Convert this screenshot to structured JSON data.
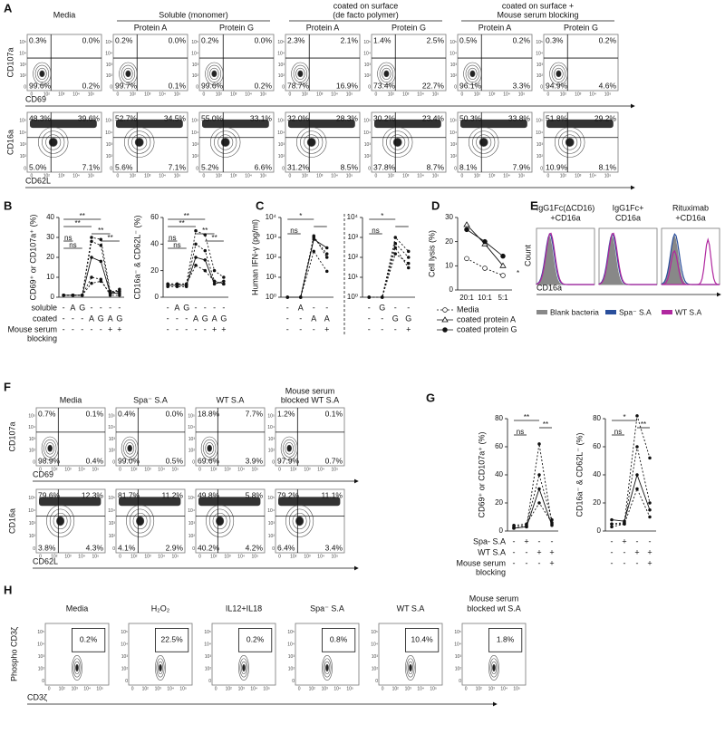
{
  "flow_ticks": [
    "0",
    "10²",
    "10³",
    "10⁴",
    "10⁵"
  ],
  "A": {
    "label": "A",
    "groups": [
      {
        "title": [
          "Media"
        ]
      },
      {
        "title": [
          "Soluble (monomer)"
        ],
        "subs": [
          "Protein A",
          "Protein G"
        ]
      },
      {
        "title": [
          "coated on surface",
          "(de facto polymer)"
        ],
        "subs": [
          "Protein A",
          "Protein G"
        ]
      },
      {
        "title": [
          "coated on surface +",
          "Mouse serum blocking"
        ],
        "subs": [
          "Protein A",
          "Protein G"
        ]
      }
    ],
    "rows": [
      {
        "ylabel": "CD107a",
        "xlabel": "CD69",
        "plots": [
          [
            "0.3%",
            "0.0%",
            "99.6%",
            "0.2%"
          ],
          [
            "0.2%",
            "0.0%",
            "99.7%",
            "0.1%"
          ],
          [
            "0.2%",
            "0.0%",
            "99.6%",
            "0.2%"
          ],
          [
            "2.3%",
            "2.1%",
            "78.7%",
            "16.9%"
          ],
          [
            "1.4%",
            "2.5%",
            "73.4%",
            "22.7%"
          ],
          [
            "0.5%",
            "0.2%",
            "96.1%",
            "3.3%"
          ],
          [
            "0.3%",
            "0.2%",
            "94.9%",
            "4.6%"
          ]
        ]
      },
      {
        "ylabel": "CD16a",
        "xlabel": "CD62L",
        "plots": [
          [
            "48.3%",
            "39.6%",
            "5.0%",
            "7.1%"
          ],
          [
            "52.7%",
            "34.5%",
            "5.6%",
            "7.1%"
          ],
          [
            "55.0%",
            "33.1%",
            "5.2%",
            "6.6%"
          ],
          [
            "32.0%",
            "28.3%",
            "31.2%",
            "8.5%"
          ],
          [
            "30.2%",
            "23.4%",
            "37.8%",
            "8.7%"
          ],
          [
            "50.3%",
            "33.8%",
            "8.1%",
            "7.9%"
          ],
          [
            "51.8%",
            "29.2%",
            "10.9%",
            "8.1%"
          ]
        ]
      }
    ]
  },
  "B": {
    "label": "B",
    "conditions": [
      [
        "soluble"
      ],
      [
        "coated"
      ],
      [
        "Mouse serum",
        "blocking"
      ]
    ],
    "charts": [
      {
        "ylabel": "CD69⁺ or CD107a⁺ (%)",
        "ylim": [
          0,
          40
        ],
        "yticks": [
          0,
          10,
          20,
          30,
          40
        ],
        "rows": [
          [
            "-",
            "A",
            "G",
            "-",
            "-",
            "-",
            "-"
          ],
          [
            "-",
            "-",
            "-",
            "A",
            "G",
            "A",
            "G"
          ],
          [
            "-",
            "-",
            "-",
            "-",
            "-",
            "+",
            "+"
          ]
        ],
        "series": [
          {
            "values": [
              1,
              1,
              1,
              30,
              29,
              3,
              3
            ],
            "dash": true
          },
          {
            "values": [
              1,
              1,
              1,
              28,
              26,
              2,
              4
            ],
            "dash": true
          },
          {
            "values": [
              1,
              1,
              1,
              20,
              18,
              2,
              2
            ],
            "dash": false
          },
          {
            "values": [
              1,
              1,
              1,
              10,
              9,
              1,
              1
            ],
            "dash": true
          },
          {
            "values": [
              1,
              1,
              1,
              7,
              8,
              2,
              3
            ],
            "dash": true
          }
        ],
        "stats": [
          "**",
          "**",
          "ns",
          "ns",
          "**",
          "**"
        ]
      },
      {
        "ylabel": "CD16a⁻ & CD62L⁻ (%)",
        "ylim": [
          0,
          60
        ],
        "yticks": [
          0,
          20,
          40,
          60
        ],
        "rows": [
          [
            "-",
            "A",
            "G",
            "-",
            "-",
            "-",
            "-"
          ],
          [
            "-",
            "-",
            "-",
            "A",
            "G",
            "A",
            "G"
          ],
          [
            "-",
            "-",
            "-",
            "-",
            "-",
            "+",
            "+"
          ]
        ],
        "series": [
          {
            "values": [
              10,
              10,
              10,
              50,
              47,
              20,
              15
            ],
            "dash": true
          },
          {
            "values": [
              8,
              8,
              8,
              40,
              35,
              12,
              10
            ],
            "dash": true
          },
          {
            "values": [
              9,
              9,
              9,
              30,
              28,
              10,
              12
            ],
            "dash": false
          },
          {
            "values": [
              10,
              10,
              10,
              24,
              20,
              12,
              10
            ],
            "dash": true
          }
        ],
        "stats": [
          "**",
          "**",
          "ns",
          "ns",
          "**",
          "**"
        ]
      }
    ]
  },
  "C": {
    "label": "C",
    "ylabel": "Human IFN-γ (pg/ml)",
    "charts": [
      {
        "log": true,
        "ylim": [
          1,
          10000
        ],
        "yticks": [
          {
            "value": 1,
            "label": "10⁰"
          },
          {
            "value": 10,
            "label": "10¹"
          },
          {
            "value": 100,
            "label": "10²"
          },
          {
            "value": 1000,
            "label": "10³"
          },
          {
            "value": 10000,
            "label": "10⁴"
          }
        ],
        "rows": [
          [
            "-",
            "A",
            "-",
            "-"
          ],
          [
            "-",
            "-",
            "A",
            "A"
          ],
          [
            "-",
            "-",
            "-",
            "+"
          ]
        ],
        "series": [
          {
            "values": [
              1,
              1,
              1000,
              150
            ],
            "dash": true
          },
          {
            "values": [
              1,
              1,
              800,
              300
            ],
            "dash": false
          },
          {
            "values": [
              1,
              1,
              200,
              20
            ],
            "dash": true
          },
          {
            "values": [
              1,
              1,
              1200,
              100
            ],
            "dash": true
          }
        ],
        "stats": [
          "*",
          "ns"
        ]
      },
      {
        "log": true,
        "ylim": [
          1,
          10000
        ],
        "yticks": [
          {
            "value": 1,
            "label": "10⁰"
          },
          {
            "value": 10,
            "label": "10¹"
          },
          {
            "value": 100,
            "label": "10²"
          },
          {
            "value": 1000,
            "label": "10³"
          },
          {
            "value": 10000,
            "label": "10⁴"
          }
        ],
        "rows": [
          [
            "-",
            "G",
            "-",
            "-"
          ],
          [
            "-",
            "-",
            "G",
            "G"
          ],
          [
            "-",
            "-",
            "-",
            "+"
          ]
        ],
        "series": [
          {
            "values": [
              1,
              1,
              1000,
              200
            ],
            "dash": true
          },
          {
            "values": [
              1,
              1,
              500,
              100
            ],
            "dash": true
          },
          {
            "values": [
              1,
              1,
              300,
              30
            ],
            "dash": true
          },
          {
            "values": [
              1,
              1,
              150,
              50
            ],
            "dash": true
          }
        ],
        "stats": [
          "*",
          "ns"
        ]
      }
    ]
  },
  "D": {
    "label": "D",
    "ylabel": "Cell lysis (%)",
    "categories": [
      "20:1",
      "10:1",
      "5:1"
    ],
    "ylim": [
      0,
      30
    ],
    "yticks": [
      0,
      10,
      20,
      30
    ],
    "series": [
      {
        "name": "Media",
        "values": [
          13,
          9,
          6
        ],
        "dash": true,
        "marker": "open"
      },
      {
        "name": "coated protein A",
        "values": [
          27,
          19,
          10
        ],
        "dash": false,
        "marker": "triangle"
      },
      {
        "name": "coated protein G",
        "values": [
          25,
          20,
          14
        ],
        "dash": false,
        "marker": "filled"
      }
    ],
    "stats": [
      "*"
    ]
  },
  "E": {
    "label": "E",
    "ylabel": "Count",
    "xlabel": "CD16a",
    "panels": [
      [
        "IgG1Fc(ΔCD16)",
        "+CD16a"
      ],
      [
        "IgG1Fc+",
        "CD16a"
      ],
      [
        "Rituximab",
        "+CD16a"
      ]
    ],
    "legend": [
      {
        "name": "Blank bacteria",
        "color": "#888888"
      },
      {
        "name": "Spa⁻ S.A",
        "color": "#2a4f9c"
      },
      {
        "name": "WT S.A",
        "color": "#b0279f"
      }
    ]
  },
  "F": {
    "label": "F",
    "titles": [
      [
        "Media"
      ],
      [
        "Spa⁻ S.A"
      ],
      [
        "WT S.A"
      ],
      [
        "Mouse serum",
        "blocked WT S.A"
      ]
    ],
    "rows": [
      {
        "ylabel": "CD107a",
        "xlabel": "CD69",
        "plots": [
          [
            "0.7%",
            "0.1%",
            "98.9%",
            "0.4%"
          ],
          [
            "0.4%",
            "0.0%",
            "99.0%",
            "0.5%"
          ],
          [
            "18.8%",
            "7.7%",
            "69.6%",
            "3.9%"
          ],
          [
            "1.2%",
            "0.1%",
            "97.9%",
            "0.7%"
          ]
        ]
      },
      {
        "ylabel": "CD16a",
        "xlabel": "CD62L",
        "plots": [
          [
            "79.6%",
            "12.3%",
            "3.8%",
            "4.3%"
          ],
          [
            "81.7%",
            "11.2%",
            "4.1%",
            "2.9%"
          ],
          [
            "49.8%",
            "5.8%",
            "40.2%",
            "4.2%"
          ],
          [
            "79.2%",
            "11.1%",
            "6.4%",
            "3.4%"
          ]
        ]
      }
    ]
  },
  "G": {
    "label": "G",
    "conditions": [
      [
        "Spa- S.A"
      ],
      [
        "WT S.A"
      ],
      [
        "Mouse serum",
        "blocking"
      ]
    ],
    "charts": [
      {
        "ylabel": "CD69⁺ or CD107a⁺ (%)",
        "ylim": [
          0,
          80
        ],
        "yticks": [
          0,
          20,
          40,
          60,
          80
        ],
        "rows": [
          [
            "-",
            "+",
            "-",
            "-"
          ],
          [
            "-",
            "-",
            "+",
            "+"
          ],
          [
            "-",
            "-",
            "-",
            "+"
          ]
        ],
        "series": [
          {
            "values": [
              2,
              3,
              62,
              5
            ],
            "dash": true
          },
          {
            "values": [
              3,
              4,
              40,
              8
            ],
            "dash": true
          },
          {
            "values": [
              2,
              3,
              30,
              4
            ],
            "dash": false
          },
          {
            "values": [
              4,
              5,
              20,
              6
            ],
            "dash": true
          }
        ],
        "stats": [
          "**",
          "ns",
          "**"
        ]
      },
      {
        "ylabel": "CD16a⁻ & CD62L⁻ (%)",
        "ylim": [
          0,
          80
        ],
        "yticks": [
          0,
          20,
          40,
          60,
          80
        ],
        "rows": [
          [
            "-",
            "+",
            "-",
            "-"
          ],
          [
            "-",
            "-",
            "+",
            "+"
          ],
          [
            "-",
            "-",
            "-",
            "+"
          ]
        ],
        "series": [
          {
            "values": [
              5,
              6,
              82,
              52
            ],
            "dash": true
          },
          {
            "values": [
              3,
              5,
              60,
              20
            ],
            "dash": true
          },
          {
            "values": [
              8,
              7,
              40,
              15
            ],
            "dash": false
          },
          {
            "values": [
              5,
              5,
              30,
              10
            ],
            "dash": true
          }
        ],
        "stats": [
          "*",
          "ns",
          "**"
        ]
      }
    ]
  },
  "H": {
    "label": "H",
    "ylabel": "Phospho CD3ζ",
    "xlabel": "CD3ζ",
    "plots": [
      {
        "title": [
          "Media"
        ],
        "value": "0.2%"
      },
      {
        "title": [
          "H₂O₂"
        ],
        "value": "22.5%"
      },
      {
        "title": [
          "IL12+IL18"
        ],
        "value": "0.2%"
      },
      {
        "title": [
          "Spa⁻ S.A"
        ],
        "value": "0.8%"
      },
      {
        "title": [
          "WT S.A"
        ],
        "value": "10.4%"
      },
      {
        "title": [
          "Mouse serum",
          "blocked wt S.A"
        ],
        "value": "1.8%"
      }
    ]
  }
}
